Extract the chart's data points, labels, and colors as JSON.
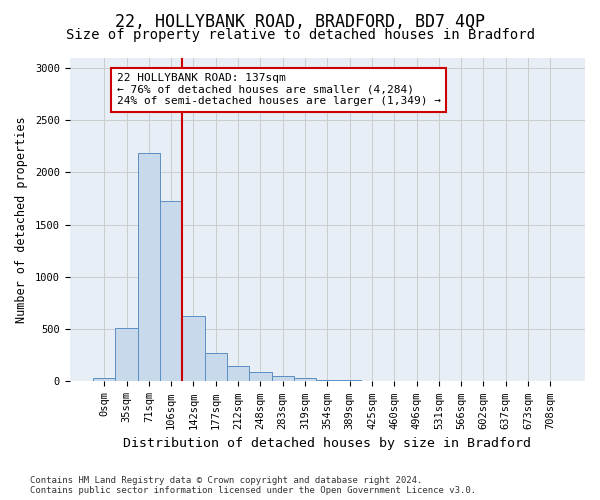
{
  "title1": "22, HOLLYBANK ROAD, BRADFORD, BD7 4QP",
  "title2": "Size of property relative to detached houses in Bradford",
  "xlabel": "Distribution of detached houses by size in Bradford",
  "ylabel": "Number of detached properties",
  "bin_labels": [
    "0sqm",
    "35sqm",
    "71sqm",
    "106sqm",
    "142sqm",
    "177sqm",
    "212sqm",
    "248sqm",
    "283sqm",
    "319sqm",
    "354sqm",
    "389sqm",
    "425sqm",
    "460sqm",
    "496sqm",
    "531sqm",
    "566sqm",
    "602sqm",
    "637sqm",
    "673sqm",
    "708sqm"
  ],
  "bar_values": [
    30,
    510,
    2190,
    1730,
    630,
    270,
    145,
    90,
    55,
    30,
    18,
    10,
    7,
    5,
    4,
    3,
    2,
    2,
    2,
    2,
    1
  ],
  "bar_color": "#c9d9ec",
  "bar_edge_color": "#5a8fc3",
  "vline_x": 3.5,
  "annotation_text": "22 HOLLYBANK ROAD: 137sqm\n← 76% of detached houses are smaller (4,284)\n24% of semi-detached houses are larger (1,349) →",
  "annotation_box_color": "#ffffff",
  "annotation_box_edge_color": "#cc0000",
  "vline_color": "#cc0000",
  "ylim": [
    0,
    3100
  ],
  "yticks": [
    0,
    500,
    1000,
    1500,
    2000,
    2500,
    3000
  ],
  "grid_color": "#cccccc",
  "bg_color": "#e8eef5",
  "footnote": "Contains HM Land Registry data © Crown copyright and database right 2024.\nContains public sector information licensed under the Open Government Licence v3.0.",
  "title1_fontsize": 12,
  "title2_fontsize": 10,
  "xlabel_fontsize": 9.5,
  "ylabel_fontsize": 8.5,
  "tick_fontsize": 7.5,
  "annot_fontsize": 8,
  "footnote_fontsize": 6.5
}
